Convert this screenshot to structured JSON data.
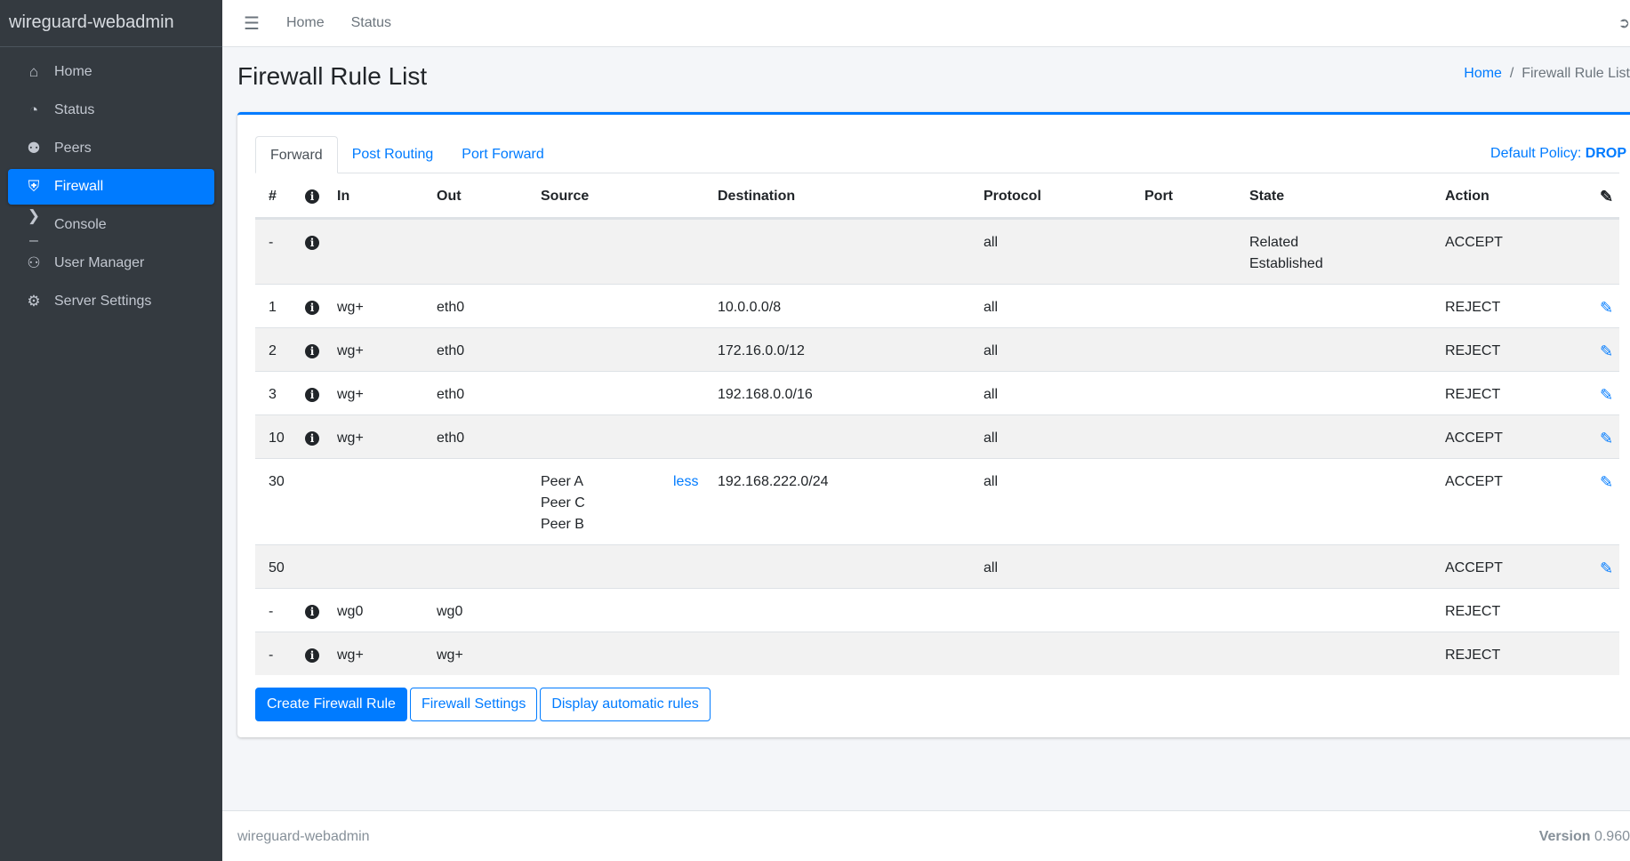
{
  "app": {
    "brand": "wireguard-webadmin",
    "accent": "#007bff"
  },
  "sidebar": {
    "items": [
      {
        "label": "Home",
        "icon": "home-icon"
      },
      {
        "label": "Status",
        "icon": "gauge-icon"
      },
      {
        "label": "Peers",
        "icon": "users-cog-icon"
      },
      {
        "label": "Firewall",
        "icon": "shield-icon",
        "active": true
      },
      {
        "label": "Console",
        "icon": "terminal-icon"
      },
      {
        "label": "User Manager",
        "icon": "users-icon"
      },
      {
        "label": "Server Settings",
        "icon": "cogs-icon"
      }
    ]
  },
  "topbar": {
    "links": [
      "Home",
      "Status"
    ]
  },
  "page": {
    "title": "Firewall Rule List",
    "breadcrumb": [
      "Home",
      "Firewall Rule List"
    ]
  },
  "tabs": [
    "Forward",
    "Post Routing",
    "Port Forward"
  ],
  "policy": {
    "label": "Default Policy:",
    "value": "DROP"
  },
  "table": {
    "headers": [
      "#",
      "",
      "In",
      "Out",
      "Source",
      "Destination",
      "Protocol",
      "Port",
      "State",
      "Action"
    ],
    "rows": [
      {
        "num": "-",
        "info": true,
        "in": "",
        "out": "",
        "source": [],
        "dest": "",
        "proto": "all",
        "port": "",
        "state": [
          "Related",
          "Established"
        ],
        "action": "ACCEPT",
        "edit": false
      },
      {
        "num": "1",
        "info": true,
        "in": "wg+",
        "out": "eth0",
        "source": [],
        "dest": "10.0.0.0/8",
        "proto": "all",
        "port": "",
        "state": [],
        "action": "REJECT",
        "edit": true
      },
      {
        "num": "2",
        "info": true,
        "in": "wg+",
        "out": "eth0",
        "source": [],
        "dest": "172.16.0.0/12",
        "proto": "all",
        "port": "",
        "state": [],
        "action": "REJECT",
        "edit": true
      },
      {
        "num": "3",
        "info": true,
        "in": "wg+",
        "out": "eth0",
        "source": [],
        "dest": "192.168.0.0/16",
        "proto": "all",
        "port": "",
        "state": [],
        "action": "REJECT",
        "edit": true
      },
      {
        "num": "10",
        "info": true,
        "in": "wg+",
        "out": "eth0",
        "source": [],
        "dest": "",
        "proto": "all",
        "port": "",
        "state": [],
        "action": "ACCEPT",
        "edit": true
      },
      {
        "num": "30",
        "info": false,
        "in": "",
        "out": "",
        "source": [
          "Peer A",
          "Peer C",
          "Peer B"
        ],
        "source_toggle": "less",
        "dest": "192.168.222.0/24",
        "proto": "all",
        "port": "",
        "state": [],
        "action": "ACCEPT",
        "edit": true
      },
      {
        "num": "50",
        "info": false,
        "in": "",
        "out": "",
        "source": [],
        "dest": "",
        "proto": "all",
        "port": "",
        "state": [],
        "action": "ACCEPT",
        "edit": true
      },
      {
        "num": "-",
        "info": true,
        "in": "wg0",
        "out": "wg0",
        "source": [],
        "dest": "",
        "proto": "",
        "port": "",
        "state": [],
        "action": "REJECT",
        "edit": false
      },
      {
        "num": "-",
        "info": true,
        "in": "wg+",
        "out": "wg+",
        "source": [],
        "dest": "",
        "proto": "",
        "port": "",
        "state": [],
        "action": "REJECT",
        "edit": false
      }
    ]
  },
  "buttons": {
    "create": "Create Firewall Rule",
    "settings": "Firewall Settings",
    "auto": "Display automatic rules"
  },
  "footer": {
    "left": "wireguard-webadmin",
    "version_label": "Version",
    "version": "0.960"
  }
}
